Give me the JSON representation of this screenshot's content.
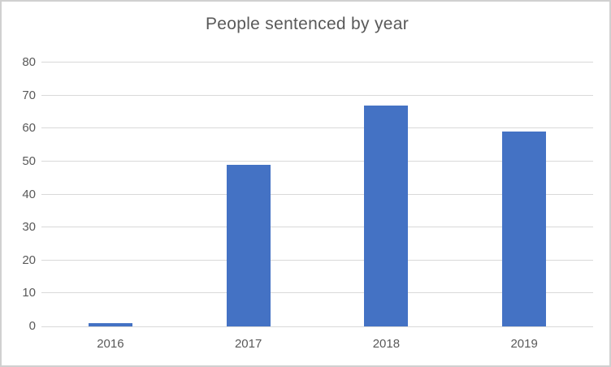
{
  "chart": {
    "title": "People sentenced by year"
  },
  "chart_data": {
    "type": "bar",
    "title": "People sentenced by year",
    "categories": [
      "2016",
      "2017",
      "2018",
      "2019"
    ],
    "values": [
      1,
      49,
      67,
      59
    ],
    "xlabel": "",
    "ylabel": "",
    "ylim": [
      0,
      80
    ],
    "ytick_step": 10,
    "ytick_labels": [
      "0",
      "10",
      "20",
      "30",
      "40",
      "50",
      "60",
      "70",
      "80"
    ],
    "grid": true,
    "legend": false,
    "colors": {
      "bar": "#4472C4",
      "gridline": "#D9D9D9",
      "axis_line": "#D9D9D9",
      "text": "#595959",
      "background": "#FFFFFF",
      "border": "#D0D0D0"
    }
  }
}
